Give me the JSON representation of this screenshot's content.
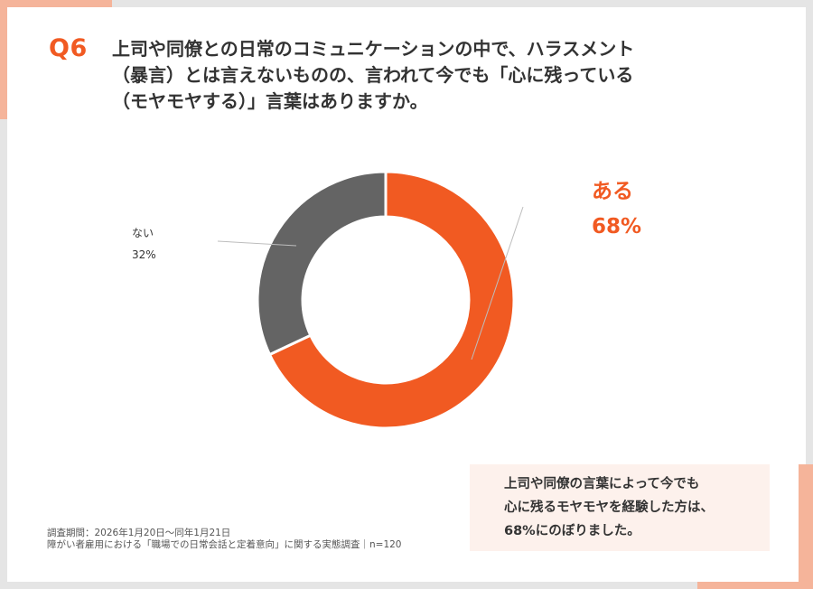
{
  "colors": {
    "accent": "#f15a22",
    "secondary": "#646464",
    "border_accent": "#f5b49a",
    "note_bg": "#fdf1ec"
  },
  "question": {
    "number": "Q6",
    "lines": [
      "上司や同僚との日常のコミュニケーションの中で、ハラスメント",
      "（暴言）とは言えないものの、言われて今でも「心に残っている",
      "（モヤモヤする）」言葉はありますか。"
    ]
  },
  "chart_data": {
    "type": "pie",
    "variant": "donut",
    "categories": [
      "ある",
      "ない"
    ],
    "values": [
      68,
      32
    ],
    "value_labels": [
      "68%",
      "32%"
    ],
    "unit": "%",
    "title": "",
    "colors": [
      "#f15a22",
      "#646464"
    ]
  },
  "labels": {
    "yes_name": "ある",
    "yes_pct": "68%",
    "no_name": "ない",
    "no_pct": "32%"
  },
  "note_lines": [
    "上司や同僚の言葉によって今でも",
    "心に残るモヤモヤを経験した方は、",
    "68%にのぼりました。"
  ],
  "footer_lines": [
    "調査期間：2026年1月20日〜同年1月21日",
    "障がい者雇用における「職場での日常会話と定着意向」に関する実態調査｜n=120"
  ]
}
